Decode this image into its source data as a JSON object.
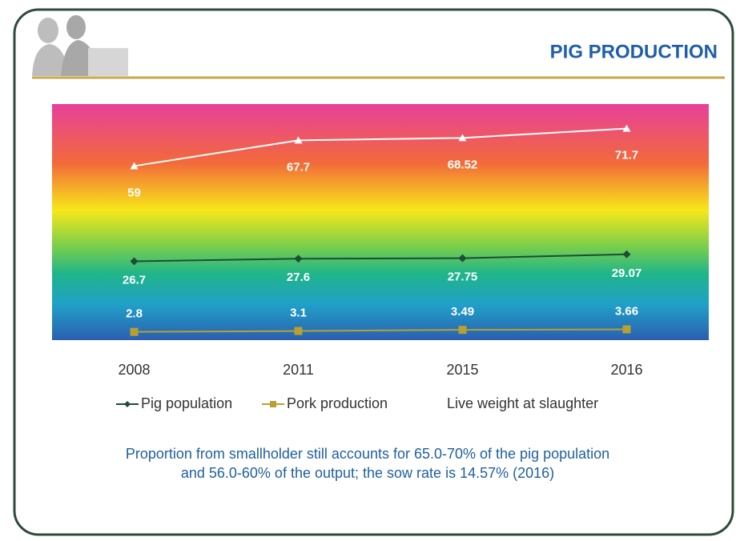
{
  "slide_title": "PIG PRODUCTION",
  "caption": [
    "Proportion from smallholder still accounts for 65.0-70% of the pig population",
    "and 56.0-60% of the output; the sow rate is 14.57% (2016)"
  ],
  "chart_data": {
    "type": "line",
    "categories": [
      "2008",
      "2011",
      "2015",
      "2016"
    ],
    "ylim": [
      0,
      80
    ],
    "series": [
      {
        "name": "Pig population",
        "color": "#1e4d35",
        "marker": "diamond",
        "values": [
          26.7,
          27.6,
          27.75,
          29.07
        ]
      },
      {
        "name": "Pork production",
        "color": "#b8a032",
        "marker": "square",
        "values": [
          2.8,
          3.1,
          3.49,
          3.66
        ]
      },
      {
        "name": "Live weight at slaughter",
        "color": "#ffffff",
        "marker": "triangle",
        "values": [
          59,
          67.7,
          68.52,
          71.7
        ]
      }
    ]
  }
}
